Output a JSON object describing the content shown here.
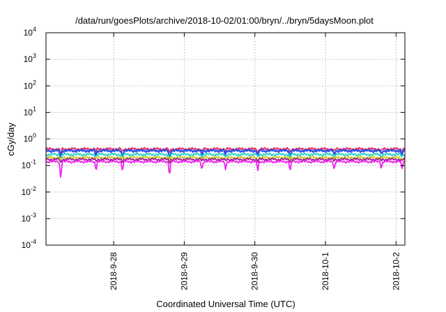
{
  "chart_data": {
    "type": "line",
    "title": "/data/run/goesPlots/archive/2018-10-02/01:00/bryn/../bryn/5daysMoon.plot",
    "xlabel": "Coordinated Universal Time (UTC)",
    "ylabel": "cGy/day",
    "yscale": "log",
    "ylim": [
      0.0001,
      10000
    ],
    "y_ticks": [
      {
        "base": "10",
        "exp": "-4",
        "value": 0.0001
      },
      {
        "base": "10",
        "exp": "-3",
        "value": 0.001
      },
      {
        "base": "10",
        "exp": "-2",
        "value": 0.01
      },
      {
        "base": "10",
        "exp": "-1",
        "value": 0.1
      },
      {
        "base": "10",
        "exp": "0",
        "value": 1
      },
      {
        "base": "10",
        "exp": "1",
        "value": 10
      },
      {
        "base": "10",
        "exp": "2",
        "value": 100
      },
      {
        "base": "10",
        "exp": "3",
        "value": 1000
      },
      {
        "base": "10",
        "exp": "4",
        "value": 10000
      }
    ],
    "xlim": [
      "2018-09-27 01:00",
      "2018-10-02 03:00"
    ],
    "x_ticks": [
      {
        "label": "2018-9-28",
        "date": "2018-09-28"
      },
      {
        "label": "2018-9-29",
        "date": "2018-09-29"
      },
      {
        "label": "2018-9-30",
        "date": "2018-09-30"
      },
      {
        "label": "2018-10-1",
        "date": "2018-10-01"
      },
      {
        "label": "2018-10-2",
        "date": "2018-10-02"
      }
    ],
    "grid": true,
    "legend": "none",
    "series": [
      {
        "color": "#e0225a",
        "level": 0.42,
        "dip_level": 0.24
      },
      {
        "color": "#3050e8",
        "level": 0.36,
        "dip_level": 0.14
      },
      {
        "color": "#20d0c8",
        "level": 0.26,
        "dip_level": 0.16
      },
      {
        "color": "#c8c820",
        "level": 0.2,
        "dip_level": 0.14
      },
      {
        "color": "#a02090",
        "level": 0.17,
        "dip_level": 0.12
      },
      {
        "color": "#f020f0",
        "level": 0.14,
        "dip_level": 0.03
      }
    ],
    "dips": [
      {
        "date": "2018-09-27 06:00",
        "depth": 1.0
      },
      {
        "date": "2018-09-27 18:00",
        "depth": 0.5
      },
      {
        "date": "2018-09-28 03:00",
        "depth": 0.6
      },
      {
        "date": "2018-09-28 19:00",
        "depth": 0.85
      },
      {
        "date": "2018-09-29 06:00",
        "depth": 0.5
      },
      {
        "date": "2018-09-29 14:00",
        "depth": 0.4
      },
      {
        "date": "2018-09-30 01:00",
        "depth": 0.55
      },
      {
        "date": "2018-09-30 12:00",
        "depth": 0.6
      },
      {
        "date": "2018-10-01 03:00",
        "depth": 0.45
      },
      {
        "date": "2018-10-01 19:00",
        "depth": 0.4
      },
      {
        "date": "2018-10-02 02:00",
        "depth": 0.5
      }
    ]
  }
}
